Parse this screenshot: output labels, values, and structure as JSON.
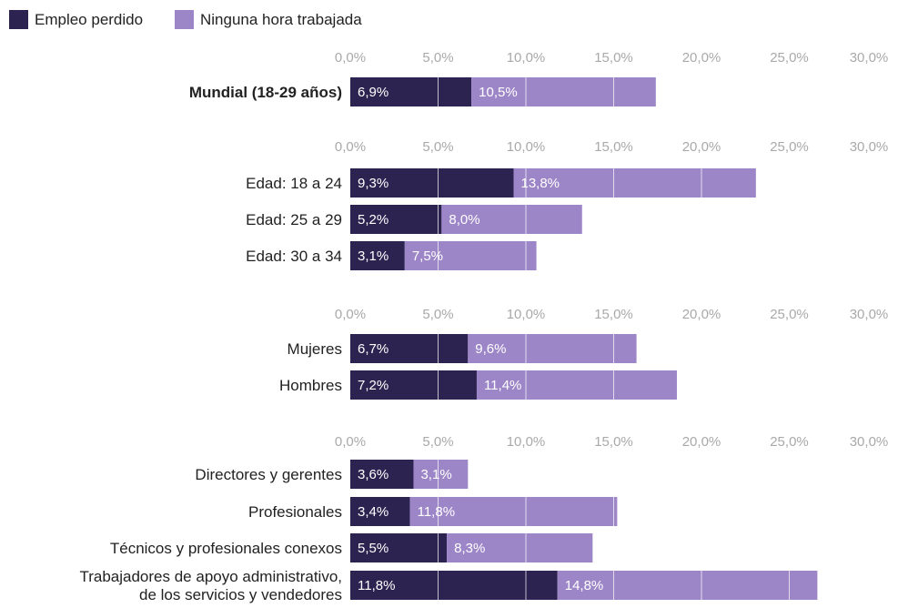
{
  "chart_data": {
    "type": "bar",
    "orientation": "horizontal",
    "stacked": true,
    "legend": {
      "position": "top-left",
      "entries": [
        {
          "name": "Empleo perdido",
          "color": "#2d2350"
        },
        {
          "name": "Ninguna hora trabajada",
          "color": "#9d86c8"
        }
      ]
    },
    "xlim": [
      0,
      30
    ],
    "ticks": [
      "0,0%",
      "5,0%",
      "10,0%",
      "15,0%",
      "20,0%",
      "25,0%",
      "30,0%"
    ],
    "tick_values": [
      0,
      5,
      10,
      15,
      20,
      25,
      30
    ],
    "grid": true,
    "colors": {
      "series1": "#2d2350",
      "series2": "#9d86c8",
      "grid": "#ffffff",
      "ticks": "#a9a9a9",
      "text": "#222222"
    },
    "groups": [
      {
        "rows": [
          {
            "label": [
              "Mundial (18-29 años)"
            ],
            "bold": true,
            "values": [
              6.9,
              10.5
            ],
            "labels": [
              "6,9%",
              "10,5%"
            ]
          }
        ]
      },
      {
        "rows": [
          {
            "label": [
              "Edad: 18 a 24"
            ],
            "values": [
              9.3,
              13.8
            ],
            "labels": [
              "9,3%",
              "13,8%"
            ]
          },
          {
            "label": [
              "Edad: 25 a 29"
            ],
            "values": [
              5.2,
              8.0
            ],
            "labels": [
              "5,2%",
              "8,0%"
            ]
          },
          {
            "label": [
              "Edad: 30 a 34"
            ],
            "values": [
              3.1,
              7.5
            ],
            "labels": [
              "3,1%",
              "7,5%"
            ]
          }
        ]
      },
      {
        "rows": [
          {
            "label": [
              "Mujeres"
            ],
            "values": [
              6.7,
              9.6
            ],
            "labels": [
              "6,7%",
              "9,6%"
            ]
          },
          {
            "label": [
              "Hombres"
            ],
            "values": [
              7.2,
              11.4
            ],
            "labels": [
              "7,2%",
              "11,4%"
            ]
          }
        ]
      },
      {
        "rows": [
          {
            "label": [
              "Directores y gerentes"
            ],
            "values": [
              3.6,
              3.1
            ],
            "labels": [
              "3,6%",
              "3,1%"
            ]
          },
          {
            "label": [
              "Profesionales"
            ],
            "values": [
              3.4,
              11.8
            ],
            "labels": [
              "3,4%",
              "11,8%"
            ]
          },
          {
            "label": [
              "Técnicos y profesionales conexos"
            ],
            "values": [
              5.5,
              8.3
            ],
            "labels": [
              "5,5%",
              "8,3%"
            ]
          },
          {
            "label": [
              "Trabajadores de apoyo administrativo,",
              "de los servicios y vendedores"
            ],
            "values": [
              11.8,
              14.8
            ],
            "labels": [
              "11,8%",
              "14,8%"
            ]
          }
        ]
      }
    ]
  }
}
